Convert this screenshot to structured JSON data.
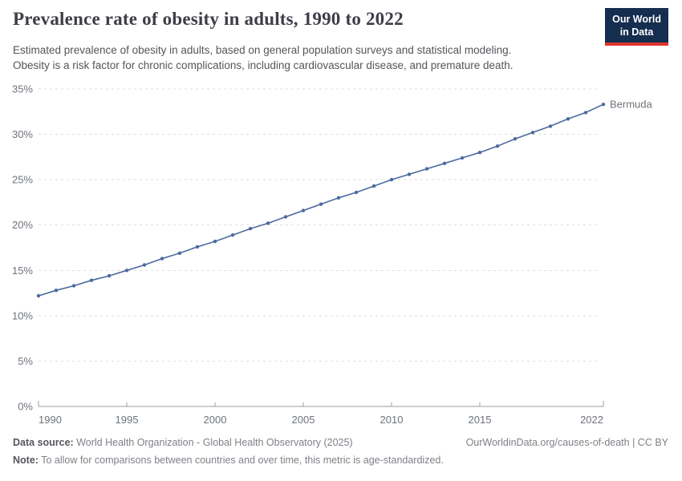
{
  "header": {
    "title": "Prevalence rate of obesity in adults, 1990 to 2022",
    "subtitle_lines": [
      "Estimated prevalence of obesity in adults, based on general population surveys and statistical modeling.",
      "Obesity is a risk factor for chronic complications, including cardiovascular disease, and premature death."
    ],
    "logo": {
      "line1": "Our World",
      "line2": "in Data"
    }
  },
  "chart_data": {
    "type": "line",
    "title": "Prevalence rate of obesity in adults, 1990 to 2022",
    "xlabel": "",
    "ylabel": "",
    "xlim": [
      1990,
      2022
    ],
    "ylim": [
      0,
      35
    ],
    "grid": "horizontal-dashed",
    "legend_position": "end-of-line-label",
    "x": [
      1990,
      1991,
      1992,
      1993,
      1994,
      1995,
      1996,
      1997,
      1998,
      1999,
      2000,
      2001,
      2002,
      2003,
      2004,
      2005,
      2006,
      2007,
      2008,
      2009,
      2010,
      2011,
      2012,
      2013,
      2014,
      2015,
      2016,
      2017,
      2018,
      2019,
      2020,
      2021,
      2022
    ],
    "series": [
      {
        "name": "Bermuda",
        "color": "#4c6a9e",
        "values": [
          12.2,
          12.8,
          13.3,
          13.9,
          14.4,
          15.0,
          15.6,
          16.3,
          16.9,
          17.6,
          18.2,
          18.9,
          19.6,
          20.2,
          20.9,
          21.6,
          22.3,
          23.0,
          23.6,
          24.3,
          25.0,
          25.6,
          26.2,
          26.8,
          27.4,
          28.0,
          28.7,
          29.5,
          30.2,
          30.9,
          31.7,
          32.4,
          33.3
        ]
      }
    ],
    "xticks": {
      "values": [
        1990,
        1995,
        2000,
        2005,
        2010,
        2015,
        2022
      ],
      "labels": [
        "1990",
        "1995",
        "2000",
        "2005",
        "2010",
        "2015",
        "2022"
      ]
    },
    "yticks": {
      "values": [
        0,
        5,
        10,
        15,
        20,
        25,
        30,
        35
      ],
      "labels": [
        "0%",
        "5%",
        "10%",
        "15%",
        "20%",
        "25%",
        "30%",
        "35%"
      ]
    }
  },
  "footer": {
    "datasource_label": "Data source:",
    "datasource_value": "World Health Organization - Global Health Observatory (2025)",
    "note_label": "Note:",
    "note_value": "To allow for comparisons between countries and over time, this metric is age-standardized.",
    "link_text": "OurWorldinData.org/causes-of-death | CC BY"
  },
  "colors": {
    "series_blue": "#4c6a9e",
    "title_text": "#3d3e48",
    "subtitle_text": "#53565a",
    "axis_text": "#6e747b",
    "gridline": "#dcdee0",
    "axis_line": "#9a9ea3",
    "logo_bg": "#152d4f",
    "logo_accent": "#dc352e"
  }
}
